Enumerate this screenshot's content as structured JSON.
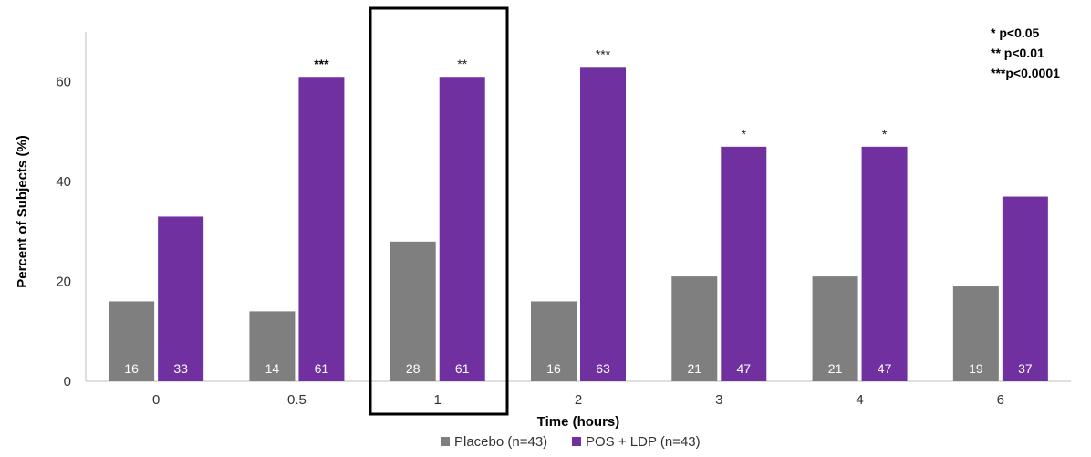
{
  "chart_data": {
    "type": "bar",
    "title": "",
    "xlabel": "Time (hours)",
    "ylabel": "Percent of Subjects (%)",
    "ylim": [
      0,
      70
    ],
    "yticks": [
      0,
      20,
      40,
      60
    ],
    "categories": [
      "0",
      "0.5",
      "1",
      "2",
      "3",
      "4",
      "6"
    ],
    "series": [
      {
        "name": "Placebo (n=43)",
        "color": "#7f7f7f",
        "values": [
          16,
          14,
          28,
          16,
          21,
          21,
          19
        ],
        "labels": [
          "16",
          "14",
          "28",
          "16",
          "21",
          "21",
          "19"
        ]
      },
      {
        "name": "POS + LDP (n=43)",
        "color": "#7030a0",
        "values": [
          33,
          61,
          61,
          63,
          47,
          47,
          37
        ],
        "labels": [
          "33",
          "61",
          "61",
          "63",
          "47",
          "47",
          "37"
        ]
      }
    ],
    "significance": [
      "",
      "***",
      "**",
      "***",
      "*",
      "*",
      ""
    ],
    "highlighted_category": "1",
    "significance_key": [
      "* p<0.05",
      "** p<0.01",
      "***p<0.0001"
    ],
    "legend_position": "bottom",
    "grid": false
  }
}
